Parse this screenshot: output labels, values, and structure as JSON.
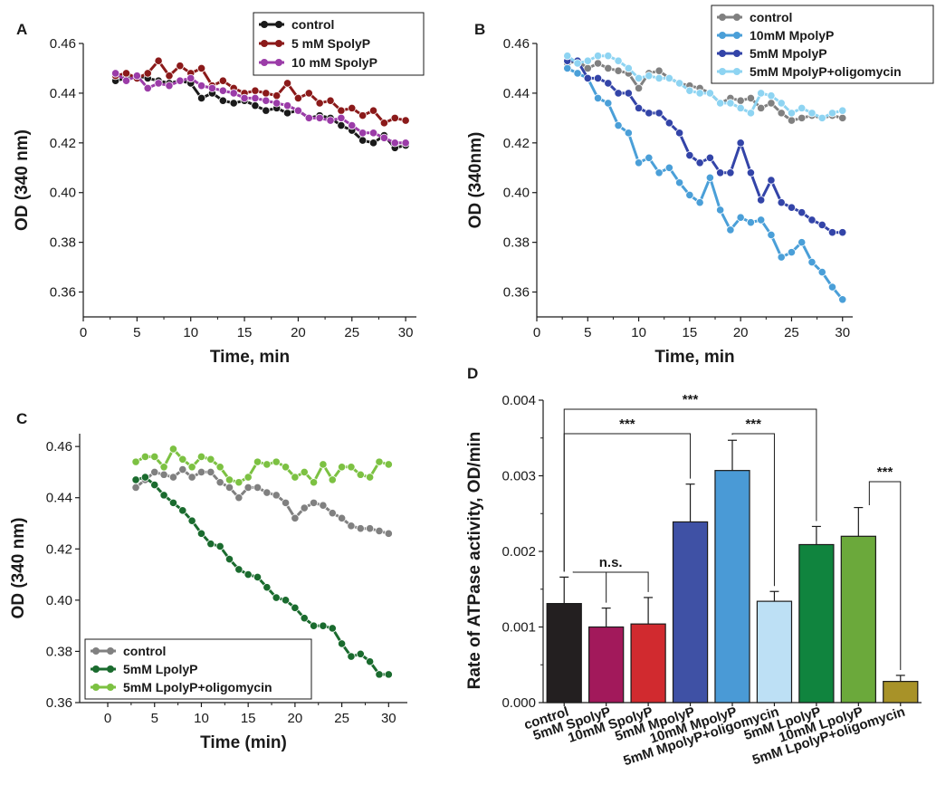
{
  "chart_data": [
    {
      "panel": "A",
      "type": "line",
      "xlabel": "Time, min",
      "ylabel": "OD (340 nm)",
      "xlim": [
        0,
        31
      ],
      "ylim": [
        0.35,
        0.46
      ],
      "xticks": [
        0,
        5,
        10,
        15,
        20,
        25,
        30
      ],
      "yticks": [
        0.36,
        0.38,
        0.4,
        0.42,
        0.44,
        0.46
      ],
      "ytick_labels": [
        "0.36",
        "0.38",
        "0.40",
        "0.42",
        "0.44",
        "0.46"
      ],
      "legend_position": "top-right",
      "series": [
        {
          "name": "control",
          "color": "#1a1a1a",
          "x": [
            3,
            4,
            5,
            6,
            7,
            8,
            9,
            10,
            11,
            12,
            13,
            14,
            15,
            16,
            17,
            18,
            19,
            20,
            21,
            22,
            23,
            24,
            25,
            26,
            27,
            28,
            29,
            30
          ],
          "values": [
            0.445,
            0.446,
            0.447,
            0.446,
            0.445,
            0.444,
            0.445,
            0.444,
            0.438,
            0.44,
            0.437,
            0.436,
            0.437,
            0.435,
            0.433,
            0.434,
            0.432,
            0.433,
            0.43,
            0.431,
            0.43,
            0.427,
            0.425,
            0.421,
            0.42,
            0.423,
            0.418,
            0.419
          ]
        },
        {
          "name": "5 mM SpolyP",
          "color": "#8b1a1a",
          "x": [
            3,
            4,
            5,
            6,
            7,
            8,
            9,
            10,
            11,
            12,
            13,
            14,
            15,
            16,
            17,
            18,
            19,
            20,
            21,
            22,
            23,
            24,
            25,
            26,
            27,
            28,
            29,
            30
          ],
          "values": [
            0.447,
            0.448,
            0.446,
            0.448,
            0.453,
            0.447,
            0.451,
            0.448,
            0.45,
            0.443,
            0.445,
            0.442,
            0.44,
            0.441,
            0.44,
            0.439,
            0.444,
            0.438,
            0.44,
            0.436,
            0.437,
            0.433,
            0.434,
            0.431,
            0.433,
            0.428,
            0.43,
            0.429
          ]
        },
        {
          "name": "10 mM SpolyP",
          "color": "#9b3ca8",
          "x": [
            3,
            4,
            5,
            6,
            7,
            8,
            9,
            10,
            11,
            12,
            13,
            14,
            15,
            16,
            17,
            18,
            19,
            20,
            21,
            22,
            23,
            24,
            25,
            26,
            27,
            28,
            29,
            30
          ],
          "values": [
            0.448,
            0.445,
            0.447,
            0.442,
            0.444,
            0.443,
            0.445,
            0.446,
            0.443,
            0.442,
            0.441,
            0.44,
            0.438,
            0.438,
            0.437,
            0.436,
            0.435,
            0.433,
            0.43,
            0.43,
            0.429,
            0.43,
            0.427,
            0.424,
            0.424,
            0.422,
            0.42,
            0.42
          ]
        }
      ]
    },
    {
      "panel": "B",
      "type": "line",
      "xlabel": "Time, min",
      "ylabel": "OD (340nm)",
      "xlim": [
        0,
        31
      ],
      "ylim": [
        0.35,
        0.46
      ],
      "xticks": [
        0,
        5,
        10,
        15,
        20,
        25,
        30
      ],
      "yticks": [
        0.36,
        0.38,
        0.4,
        0.42,
        0.44,
        0.46
      ],
      "ytick_labels": [
        "0.36",
        "0.38",
        "0.40",
        "0.42",
        "0.44",
        "0.46"
      ],
      "legend_position": "top-right",
      "series": [
        {
          "name": "control",
          "color": "#808080",
          "x": [
            3,
            4,
            5,
            6,
            7,
            8,
            9,
            10,
            11,
            12,
            13,
            14,
            15,
            16,
            17,
            18,
            19,
            20,
            21,
            22,
            23,
            24,
            25,
            26,
            27,
            28,
            29,
            30
          ],
          "values": [
            0.452,
            0.453,
            0.45,
            0.452,
            0.45,
            0.449,
            0.448,
            0.442,
            0.448,
            0.449,
            0.446,
            0.444,
            0.443,
            0.442,
            0.44,
            0.436,
            0.438,
            0.437,
            0.438,
            0.434,
            0.436,
            0.432,
            0.429,
            0.43,
            0.431,
            0.43,
            0.431,
            0.43
          ]
        },
        {
          "name": "10mM MpolyP",
          "color": "#4a9fd8",
          "x": [
            3,
            4,
            5,
            6,
            7,
            8,
            9,
            10,
            11,
            12,
            13,
            14,
            15,
            16,
            17,
            18,
            19,
            20,
            21,
            22,
            23,
            24,
            25,
            26,
            27,
            28,
            29,
            30
          ],
          "values": [
            0.45,
            0.448,
            0.446,
            0.438,
            0.436,
            0.427,
            0.424,
            0.412,
            0.414,
            0.408,
            0.41,
            0.404,
            0.399,
            0.396,
            0.406,
            0.393,
            0.385,
            0.39,
            0.388,
            0.389,
            0.383,
            0.374,
            0.376,
            0.38,
            0.372,
            0.368,
            0.362,
            0.357
          ]
        },
        {
          "name": "5mM MpolyP",
          "color": "#3344a8",
          "x": [
            3,
            4,
            5,
            6,
            7,
            8,
            9,
            10,
            11,
            12,
            13,
            14,
            15,
            16,
            17,
            18,
            19,
            20,
            21,
            22,
            23,
            24,
            25,
            26,
            27,
            28,
            29,
            30
          ],
          "values": [
            0.453,
            0.453,
            0.446,
            0.446,
            0.444,
            0.44,
            0.44,
            0.434,
            0.432,
            0.432,
            0.428,
            0.424,
            0.415,
            0.412,
            0.414,
            0.408,
            0.408,
            0.42,
            0.408,
            0.397,
            0.405,
            0.396,
            0.394,
            0.392,
            0.389,
            0.387,
            0.384,
            0.384
          ]
        },
        {
          "name": "5mM MpolyP+oligomycin",
          "color": "#8ed4f2",
          "x": [
            3,
            4,
            5,
            6,
            7,
            8,
            9,
            10,
            11,
            12,
            13,
            14,
            15,
            16,
            17,
            18,
            19,
            20,
            21,
            22,
            23,
            24,
            25,
            26,
            27,
            28,
            29,
            30
          ],
          "values": [
            0.455,
            0.452,
            0.453,
            0.455,
            0.455,
            0.453,
            0.45,
            0.446,
            0.447,
            0.446,
            0.446,
            0.444,
            0.441,
            0.44,
            0.44,
            0.436,
            0.436,
            0.434,
            0.432,
            0.44,
            0.439,
            0.436,
            0.432,
            0.434,
            0.432,
            0.43,
            0.432,
            0.433
          ]
        }
      ]
    },
    {
      "panel": "C",
      "type": "line",
      "xlabel": "Time (min)",
      "ylabel": "OD (340 nm)",
      "xlim": [
        -3,
        32
      ],
      "ylim": [
        0.36,
        0.465
      ],
      "xticks": [
        0,
        5,
        10,
        15,
        20,
        25,
        30
      ],
      "yticks": [
        0.36,
        0.38,
        0.4,
        0.42,
        0.44,
        0.46
      ],
      "ytick_labels": [
        "0.36",
        "0.38",
        "0.40",
        "0.42",
        "0.44",
        "0.46"
      ],
      "legend_position": "bottom-left",
      "series": [
        {
          "name": "control",
          "color": "#808080",
          "x": [
            3,
            4,
            5,
            6,
            7,
            8,
            9,
            10,
            11,
            12,
            13,
            14,
            15,
            16,
            17,
            18,
            19,
            20,
            21,
            22,
            23,
            24,
            25,
            26,
            27,
            28,
            29,
            30
          ],
          "values": [
            0.444,
            0.447,
            0.45,
            0.449,
            0.448,
            0.451,
            0.448,
            0.45,
            0.45,
            0.446,
            0.444,
            0.44,
            0.444,
            0.444,
            0.442,
            0.441,
            0.438,
            0.432,
            0.436,
            0.438,
            0.437,
            0.434,
            0.432,
            0.429,
            0.428,
            0.428,
            0.427,
            0.426
          ]
        },
        {
          "name": "5mM LpolyP",
          "color": "#1a6b2e",
          "x": [
            3,
            4,
            5,
            6,
            7,
            8,
            9,
            10,
            11,
            12,
            13,
            14,
            15,
            16,
            17,
            18,
            19,
            20,
            21,
            22,
            23,
            24,
            25,
            26,
            27,
            28,
            29,
            30
          ],
          "values": [
            0.447,
            0.448,
            0.445,
            0.441,
            0.438,
            0.435,
            0.431,
            0.426,
            0.422,
            0.421,
            0.416,
            0.412,
            0.41,
            0.409,
            0.405,
            0.401,
            0.4,
            0.397,
            0.393,
            0.39,
            0.39,
            0.389,
            0.383,
            0.378,
            0.379,
            0.376,
            0.371,
            0.371
          ]
        },
        {
          "name": "5mM LpolyP+oligomycin",
          "color": "#7cc142",
          "x": [
            3,
            4,
            5,
            6,
            7,
            8,
            9,
            10,
            11,
            12,
            13,
            14,
            15,
            16,
            17,
            18,
            19,
            20,
            21,
            22,
            23,
            24,
            25,
            26,
            27,
            28,
            29,
            30
          ],
          "values": [
            0.454,
            0.456,
            0.456,
            0.452,
            0.459,
            0.455,
            0.452,
            0.456,
            0.455,
            0.452,
            0.447,
            0.446,
            0.448,
            0.454,
            0.453,
            0.454,
            0.452,
            0.448,
            0.45,
            0.446,
            0.453,
            0.447,
            0.452,
            0.452,
            0.449,
            0.448,
            0.454,
            0.453
          ]
        }
      ]
    },
    {
      "panel": "D",
      "type": "bar",
      "ylabel": "Rate of ATPase activity, OD/min",
      "ylim": [
        0,
        0.004
      ],
      "yticks": [
        0,
        0.001,
        0.002,
        0.003,
        0.004
      ],
      "ytick_labels": [
        "0.000",
        "0.001",
        "0.002",
        "0.003",
        "0.004"
      ],
      "categories": [
        "control",
        "5mM SpolyP",
        "10mM SpolyP",
        "5mM MpolyP",
        "10mM MpolyP",
        "5mM MpolyP+oligomycin",
        "5mM LpolyP",
        "10mM LpolyP",
        "5mM LpolyP+oligomycin"
      ],
      "values": [
        0.00131,
        0.001,
        0.00104,
        0.00239,
        0.00307,
        0.00134,
        0.00209,
        0.0022,
        0.00028
      ],
      "errors": [
        0.00035,
        0.00025,
        0.00035,
        0.0005,
        0.0004,
        0.00013,
        0.00024,
        0.00038,
        8e-05
      ],
      "colors": [
        "#231f20",
        "#a2195b",
        "#d12a2f",
        "#3f51a5",
        "#4a9ad6",
        "#bde0f5",
        "#10843e",
        "#6ba93b",
        "#a89228"
      ],
      "significance": [
        {
          "from": 0,
          "to": 7,
          "label": "***"
        },
        {
          "from": 0,
          "to": 4,
          "label": "***"
        },
        {
          "from": 4,
          "to": 6,
          "label": "***"
        },
        {
          "from": 0,
          "to": 2,
          "label": "n.s."
        },
        {
          "from": 7,
          "to": 9,
          "label": "***"
        }
      ]
    }
  ],
  "panel_labels": [
    "A",
    "B",
    "C",
    "D"
  ]
}
